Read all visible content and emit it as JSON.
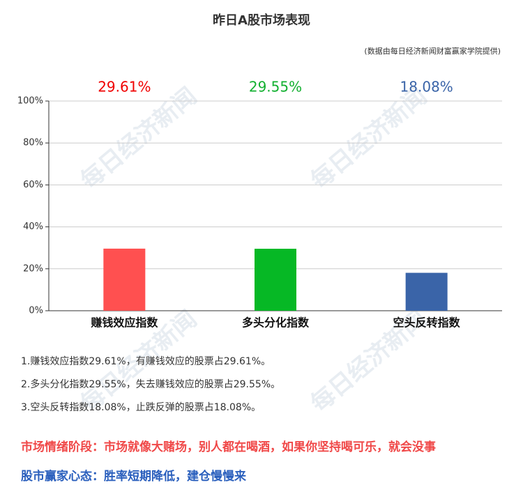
{
  "chart_data": {
    "type": "bar",
    "title": "昨日A股市场表现",
    "subtitle": "(数据由每日经济新闻财富赢家学院提供)",
    "categories": [
      "赚钱效应指数",
      "多头分化指数",
      "空头反转指数"
    ],
    "values": [
      29.61,
      29.55,
      18.08
    ],
    "value_labels": [
      "29.61%",
      "29.55%",
      "18.08%"
    ],
    "colors": [
      "#ff5050",
      "#06b825",
      "#3a64a8"
    ],
    "label_colors": [
      "#f00000",
      "#12b030",
      "#3a64a8"
    ],
    "ylim": [
      0,
      100
    ],
    "yticks": [
      {
        "value": 0,
        "label": "0%"
      },
      {
        "value": 20,
        "label": "20%"
      },
      {
        "value": 40,
        "label": "40%"
      },
      {
        "value": 60,
        "label": "60%"
      },
      {
        "value": 80,
        "label": "80%"
      },
      {
        "value": 100,
        "label": "100%"
      }
    ],
    "grid": true,
    "watermark": "每日经济新闻",
    "notes": [
      "1.赚钱效应指数29.61%，有赚钱效应的股票占29.61%。",
      "2.多头分化指数29.55%，失去赚钱效应的股票占29.55%。",
      "3.空头反转指数18.08%，止跌反弹的股票占18.08%。"
    ],
    "sentiment": "市场情绪阶段：市场就像大赌场，别人都在喝酒，如果你坚持喝可乐，就会没事",
    "mindset": "股市赢家心态：胜率短期降低，建仓慢慢来"
  }
}
